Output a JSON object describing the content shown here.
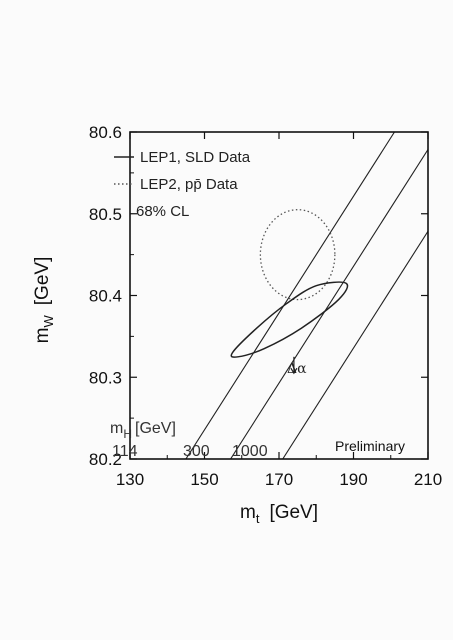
{
  "chart_data": {
    "type": "scatter",
    "xlabel": "m",
    "xlabel_sub": "t",
    "xlabel_unit": "[GeV]",
    "ylabel": "m",
    "ylabel_sub": "W",
    "ylabel_unit": "[GeV]",
    "xlim": [
      130,
      210
    ],
    "ylim": [
      80.2,
      80.6
    ],
    "xticks": [
      "130",
      "150",
      "170",
      "190",
      "210"
    ],
    "yticks": [
      "80.2",
      "80.3",
      "80.4",
      "80.5",
      "80.6"
    ],
    "legend_placement": "top-left",
    "legend": [
      {
        "label": "LEP1, SLD Data",
        "style": "solid"
      },
      {
        "label": "LEP2, pp̄ Data",
        "style": "dotted"
      }
    ],
    "confidence_label": "68% CL",
    "higgs_label_main": "m",
    "higgs_label_sub": "H",
    "higgs_label_unit": "[GeV]",
    "higgs_bands": [
      {
        "label": "114",
        "x_at_bottom": 145,
        "x_at_top": 201
      },
      {
        "label": "300",
        "x_at_bottom": 157,
        "x_at_top": 213
      },
      {
        "label": "1000",
        "x_at_bottom": 171,
        "x_at_top": 227
      }
    ],
    "delta_alpha_label": "Δα",
    "delta_alpha_arrow": {
      "x": 174,
      "y1": 80.305,
      "y2": 80.325
    },
    "lep1_contour": {
      "center": [
        173,
        80.372
      ],
      "points_note": "tilted ellipse",
      "samples": [
        [
          157.5,
          80.33
        ],
        [
          164,
          80.36
        ],
        [
          172,
          80.39
        ],
        [
          180,
          80.412
        ],
        [
          188,
          80.415
        ],
        [
          186,
          80.395
        ],
        [
          176,
          80.36
        ],
        [
          166,
          80.335
        ],
        [
          159,
          80.325
        ]
      ]
    },
    "lep2_contour": {
      "center": [
        175,
        80.45
      ],
      "rx": 10,
      "ry": 0.055
    },
    "annotation": "Preliminary",
    "colors": {
      "axes": "#111111",
      "lines": "#222222",
      "dotted": "#555555",
      "text": "#111111"
    }
  }
}
